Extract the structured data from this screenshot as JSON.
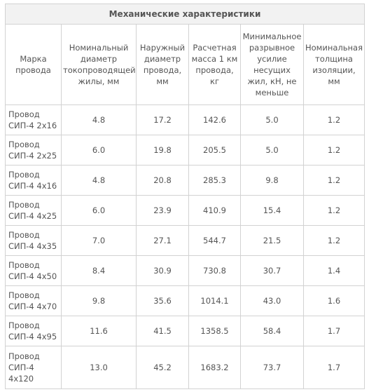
{
  "title": "Механические характеристики",
  "columns": [
    "Марка провода",
    "Номинальный диаметр токопроводящей жилы, мм",
    "Наружный диаметр провода, мм",
    "Расчетная масса 1 км провода, кг",
    "Минимальное разрывное усилие несущих жил, кН, не меньше",
    "Номинальная толщина изоляции, мм"
  ],
  "rows": [
    {
      "name": "Провод СИП-4 2х16",
      "cells": [
        "4.8",
        "17.2",
        "142.6",
        "5.0",
        "1.2"
      ]
    },
    {
      "name": "Провод СИП-4 2х25",
      "cells": [
        "6.0",
        "19.8",
        "205.5",
        "5.0",
        "1.2"
      ]
    },
    {
      "name": "Провод СИП-4 4х16",
      "cells": [
        "4.8",
        "20.8",
        "285.3",
        "9.8",
        "1.2"
      ]
    },
    {
      "name": "Провод СИП-4 4х25",
      "cells": [
        "6.0",
        "23.9",
        "410.9",
        "15.4",
        "1.2"
      ]
    },
    {
      "name": "Провод СИП-4 4х35",
      "cells": [
        "7.0",
        "27.1",
        "544.7",
        "21.5",
        "1.2"
      ]
    },
    {
      "name": "Провод СИП-4 4х50",
      "cells": [
        "8.4",
        "30.9",
        "730.8",
        "30.7",
        "1.4"
      ]
    },
    {
      "name": "Провод СИП-4 4х70",
      "cells": [
        "9.8",
        "35.6",
        "1014.1",
        "43.0",
        "1.6"
      ]
    },
    {
      "name": "Провод СИП-4 4х95",
      "cells": [
        "11.6",
        "41.5",
        "1358.5",
        "58.4",
        "1.7"
      ]
    },
    {
      "name": "Провод СИП-4 4х120",
      "cells": [
        "13.0",
        "45.2",
        "1683.2",
        "73.7",
        "1.7"
      ]
    }
  ]
}
